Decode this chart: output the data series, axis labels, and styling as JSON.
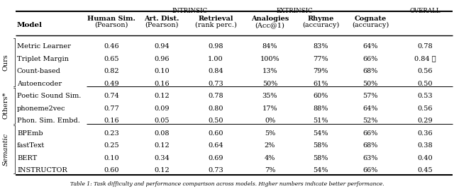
{
  "title_caption": "Table 1: Task difficulty and performance comparison across models. Higher numbers indicate better performance.",
  "row_groups": [
    {
      "group_label": "Ours",
      "rows": [
        [
          "Metric Learner",
          "0.46",
          "0.94",
          "0.98",
          "84%",
          "83%",
          "64%",
          "0.78"
        ],
        [
          "Triplet Margin",
          "0.65",
          "0.96",
          "1.00",
          "100%",
          "77%",
          "66%",
          "0.84 ⋆"
        ],
        [
          "Count-based",
          "0.82",
          "0.10",
          "0.84",
          "13%",
          "79%",
          "68%",
          "0.56"
        ],
        [
          "Autoencoder",
          "0.49",
          "0.16",
          "0.73",
          "50%",
          "61%",
          "50%",
          "0.50"
        ]
      ]
    },
    {
      "group_label": "Others*",
      "rows": [
        [
          "Poetic Sound Sim.",
          "0.74",
          "0.12",
          "0.78",
          "35%",
          "60%",
          "57%",
          "0.53"
        ],
        [
          "phoneme2vec",
          "0.77",
          "0.09",
          "0.80",
          "17%",
          "88%",
          "64%",
          "0.56"
        ],
        [
          "Phon. Sim. Embd.",
          "0.16",
          "0.05",
          "0.50",
          "0%",
          "51%",
          "52%",
          "0.29"
        ]
      ]
    },
    {
      "group_label": "Semantic",
      "rows": [
        [
          "BPEmb",
          "0.23",
          "0.08",
          "0.60",
          "5%",
          "54%",
          "66%",
          "0.36"
        ],
        [
          "fastText",
          "0.25",
          "0.12",
          "0.64",
          "2%",
          "58%",
          "68%",
          "0.38"
        ],
        [
          "BERT",
          "0.10",
          "0.34",
          "0.69",
          "4%",
          "58%",
          "63%",
          "0.40"
        ],
        [
          "INSTRUCTOR",
          "0.60",
          "0.12",
          "0.73",
          "7%",
          "54%",
          "66%",
          "0.45"
        ]
      ]
    }
  ],
  "fig_width": 6.4,
  "fig_height": 2.74,
  "dpi": 100
}
